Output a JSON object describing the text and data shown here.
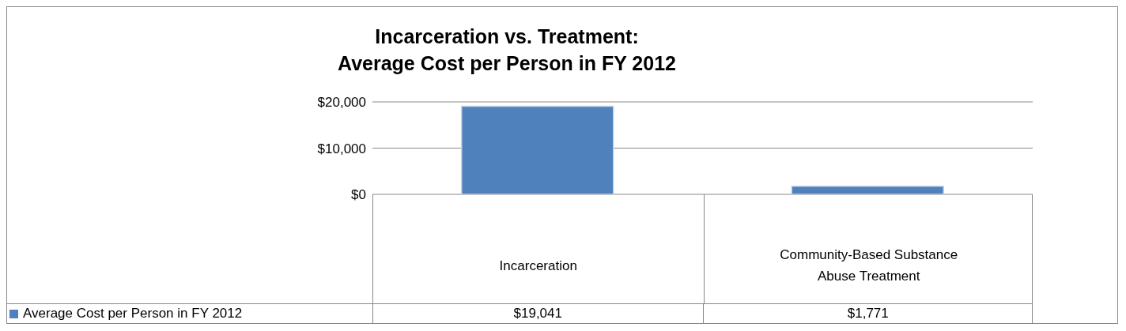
{
  "chart_data": {
    "type": "bar",
    "title": "Incarceration vs. Treatment:\nAverage Cost per Person in FY 2012",
    "categories": [
      "Incarceration",
      "Community-Based Substance Abuse Treatment"
    ],
    "series": [
      {
        "name": "Average Cost per Person in FY 2012",
        "color": "#4f81bd",
        "values": [
          19041,
          1771
        ],
        "value_labels": [
          "$19,041",
          "$1,771"
        ]
      }
    ],
    "ylim": [
      0,
      20000
    ],
    "yticks": [
      {
        "value": 0,
        "label": "$0"
      },
      {
        "value": 10000,
        "label": "$10,000"
      },
      {
        "value": 20000,
        "label": "$20,000"
      }
    ],
    "grid": "y",
    "legend": "bottom left"
  }
}
